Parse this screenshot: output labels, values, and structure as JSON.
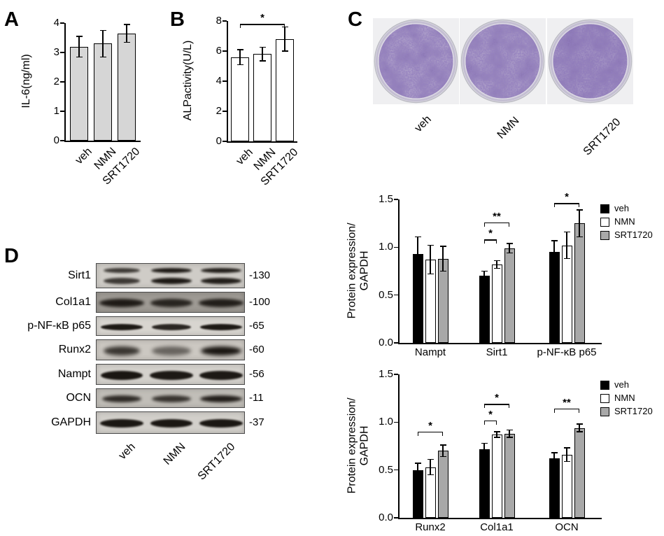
{
  "panels": {
    "a_label": "A",
    "b_label": "B",
    "c_label": "C",
    "d_label": "D"
  },
  "panelC": {
    "dish_labels": [
      "veh",
      "NMN",
      "SRT1720"
    ]
  },
  "panelD": {
    "lane_labels": [
      "veh",
      "NMN",
      "SRT1720"
    ],
    "rows": [
      {
        "label": "Sirt1",
        "mw": "-130"
      },
      {
        "label": "Col1a1",
        "mw": "-100"
      },
      {
        "label": "p-NF-κB p65",
        "mw": "-65"
      },
      {
        "label": "Runx2",
        "mw": "-60"
      },
      {
        "label": "Nampt",
        "mw": "-56"
      },
      {
        "label": "OCN",
        "mw": "-11"
      },
      {
        "label": "GAPDH",
        "mw": "-37"
      }
    ]
  },
  "chart_data": [
    {
      "id": "A",
      "type": "bar",
      "ylabel": "IL-6(ng/ml)",
      "categories": [
        "veh",
        "NMN",
        "SRT1720"
      ],
      "values": [
        3.2,
        3.3,
        3.65
      ],
      "errors": [
        0.35,
        0.45,
        0.3
      ],
      "ylim": [
        0,
        4
      ],
      "yticks": [
        "0",
        "1",
        "2",
        "3",
        "4"
      ],
      "bar_fill": "#d6d6d6"
    },
    {
      "id": "B",
      "type": "bar",
      "ylabel": "ALPactivity(U/L)",
      "categories": [
        "veh",
        "NMN",
        "SRT1720"
      ],
      "values": [
        5.6,
        5.8,
        6.8
      ],
      "errors": [
        0.5,
        0.45,
        0.8
      ],
      "ylim": [
        0,
        8
      ],
      "yticks": [
        "0",
        "2",
        "4",
        "6",
        "8"
      ],
      "bar_fill": "#ffffff",
      "significance": [
        {
          "from": 0,
          "to": 2,
          "label": "*",
          "y": 7.8
        }
      ]
    },
    {
      "id": "top",
      "type": "grouped-bar",
      "ylabel_lines": [
        "Protein expression/",
        "GAPDH"
      ],
      "categories": [
        "Nampt",
        "Sirt1",
        "p-NF-κB p65"
      ],
      "ylim": [
        0,
        1.5
      ],
      "yticks": [
        "0.0",
        "0.5",
        "1.0",
        "1.5"
      ],
      "legend_position": "top-right",
      "series": [
        {
          "name": "veh",
          "fill": "#000000",
          "values": [
            0.93,
            0.7,
            0.95
          ],
          "errors": [
            0.18,
            0.05,
            0.12
          ]
        },
        {
          "name": "NMN",
          "fill": "#ffffff",
          "values": [
            0.87,
            0.82,
            1.02
          ],
          "errors": [
            0.15,
            0.04,
            0.14
          ]
        },
        {
          "name": "SRT1720",
          "fill": "#a8a8a8",
          "values": [
            0.88,
            0.99,
            1.25
          ],
          "errors": [
            0.13,
            0.05,
            0.14
          ]
        }
      ],
      "significance": [
        {
          "cat": 1,
          "from": 0,
          "to": 1,
          "label": "*",
          "y": 1.08
        },
        {
          "cat": 1,
          "from": 0,
          "to": 2,
          "label": "**",
          "y": 1.26
        },
        {
          "cat": 2,
          "from": 0,
          "to": 2,
          "label": "*",
          "y": 1.46
        }
      ]
    },
    {
      "id": "bottom",
      "type": "grouped-bar",
      "ylabel_lines": [
        "Protein expression/",
        "GAPDH"
      ],
      "categories": [
        "Runx2",
        "Col1a1",
        "OCN"
      ],
      "ylim": [
        0,
        1.5
      ],
      "yticks": [
        "0.0",
        "0.5",
        "1.0",
        "1.5"
      ],
      "legend_position": "top-right",
      "series": [
        {
          "name": "veh",
          "fill": "#000000",
          "values": [
            0.5,
            0.72,
            0.62
          ],
          "errors": [
            0.07,
            0.06,
            0.06
          ]
        },
        {
          "name": "NMN",
          "fill": "#ffffff",
          "values": [
            0.53,
            0.87,
            0.66
          ],
          "errors": [
            0.08,
            0.03,
            0.07
          ]
        },
        {
          "name": "SRT1720",
          "fill": "#a8a8a8",
          "values": [
            0.7,
            0.88,
            0.94
          ],
          "errors": [
            0.06,
            0.04,
            0.04
          ]
        }
      ],
      "significance": [
        {
          "cat": 0,
          "from": 0,
          "to": 2,
          "label": "*",
          "y": 0.9
        },
        {
          "cat": 1,
          "from": 0,
          "to": 1,
          "label": "*",
          "y": 1.02
        },
        {
          "cat": 1,
          "from": 0,
          "to": 2,
          "label": "*",
          "y": 1.19
        },
        {
          "cat": 2,
          "from": 0,
          "to": 2,
          "label": "**",
          "y": 1.14
        }
      ]
    }
  ]
}
